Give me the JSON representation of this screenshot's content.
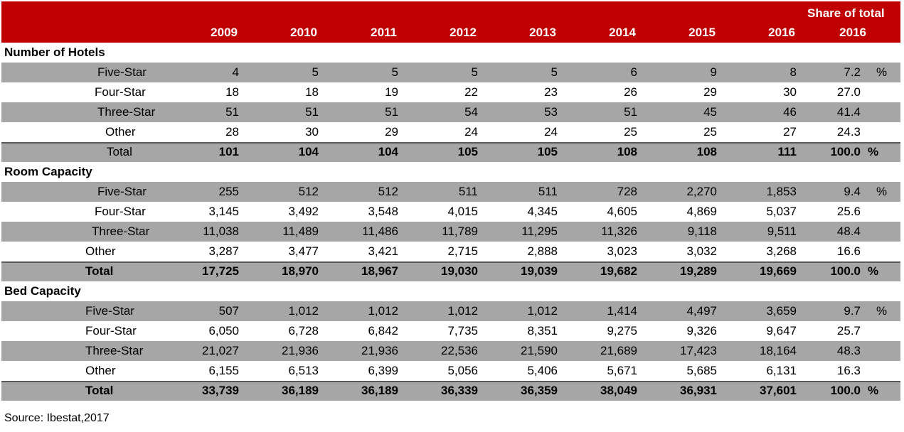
{
  "header": {
    "share_label": "Share of total",
    "years": [
      "2009",
      "2010",
      "2011",
      "2012",
      "2013",
      "2014",
      "2015",
      "2016",
      "2016"
    ]
  },
  "sections": [
    {
      "title": "Number of Hotels",
      "rows": [
        {
          "label": "Five-Star",
          "values": [
            "4",
            "5",
            "5",
            "5",
            "5",
            "6",
            "9",
            "8"
          ],
          "share": "7.2",
          "pct": "%"
        },
        {
          "label": "Four-Star",
          "values": [
            "18",
            "18",
            "19",
            "22",
            "23",
            "26",
            "29",
            "30"
          ],
          "share": "27.0",
          "pct": ""
        },
        {
          "label": "Three-Star",
          "values": [
            "51",
            "51",
            "51",
            "54",
            "53",
            "51",
            "45",
            "46"
          ],
          "share": "41.4",
          "pct": ""
        },
        {
          "label": "Other",
          "values": [
            "28",
            "30",
            "29",
            "24",
            "24",
            "25",
            "25",
            "27"
          ],
          "share": "24.3",
          "pct": ""
        }
      ],
      "total": {
        "label": "Total",
        "values": [
          "101",
          "104",
          "104",
          "105",
          "105",
          "108",
          "108",
          "111"
        ],
        "share": "100.0",
        "pct": "%"
      }
    },
    {
      "title": "Room Capacity",
      "rows": [
        {
          "label": "Five-Star",
          "values": [
            "255",
            "512",
            "512",
            "511",
            "511",
            "728",
            "2,270",
            "1,853"
          ],
          "share": "9.4",
          "pct": "%"
        },
        {
          "label": "Four-Star",
          "values": [
            "3,145",
            "3,492",
            "3,548",
            "4,015",
            "4,345",
            "4,605",
            "4,869",
            "5,037"
          ],
          "share": "25.6",
          "pct": ""
        },
        {
          "label": "Three-Star",
          "values": [
            "11,038",
            "11,489",
            "11,486",
            "11,789",
            "11,295",
            "11,326",
            "9,118",
            "9,511"
          ],
          "share": "48.4",
          "pct": ""
        },
        {
          "label": "Other",
          "values": [
            "3,287",
            "3,477",
            "3,421",
            "2,715",
            "2,888",
            "3,023",
            "3,032",
            "3,268"
          ],
          "share": "16.6",
          "pct": ""
        }
      ],
      "total": {
        "label": "Total",
        "values": [
          "17,725",
          "18,970",
          "18,967",
          "19,030",
          "19,039",
          "19,682",
          "19,289",
          "19,669"
        ],
        "share": "100.0",
        "pct": "%"
      }
    },
    {
      "title": "Bed Capacity",
      "rows": [
        {
          "label": "Five-Star",
          "values": [
            "507",
            "1,012",
            "1,012",
            "1,012",
            "1,012",
            "1,414",
            "4,497",
            "3,659"
          ],
          "share": "9.7",
          "pct": "%"
        },
        {
          "label": "Four-Star",
          "values": [
            "6,050",
            "6,728",
            "6,842",
            "7,735",
            "8,351",
            "9,275",
            "9,326",
            "9,647"
          ],
          "share": "25.7",
          "pct": ""
        },
        {
          "label": "Three-Star",
          "values": [
            "21,027",
            "21,936",
            "21,936",
            "22,536",
            "21,590",
            "21,689",
            "17,423",
            "18,164"
          ],
          "share": "48.3",
          "pct": ""
        },
        {
          "label": "Other",
          "values": [
            "6,155",
            "6,513",
            "6,399",
            "5,056",
            "5,406",
            "5,671",
            "5,685",
            "6,131"
          ],
          "share": "16.3",
          "pct": ""
        }
      ],
      "total": {
        "label": "Total",
        "values": [
          "33,739",
          "36,189",
          "36,189",
          "36,339",
          "36,359",
          "38,049",
          "36,931",
          "37,601"
        ],
        "share": "100.0",
        "pct": "%"
      }
    }
  ],
  "source": "Source: Ibestat,2017",
  "colors": {
    "header_bg": "#c00000",
    "row_gray": "#a6a6a6"
  }
}
